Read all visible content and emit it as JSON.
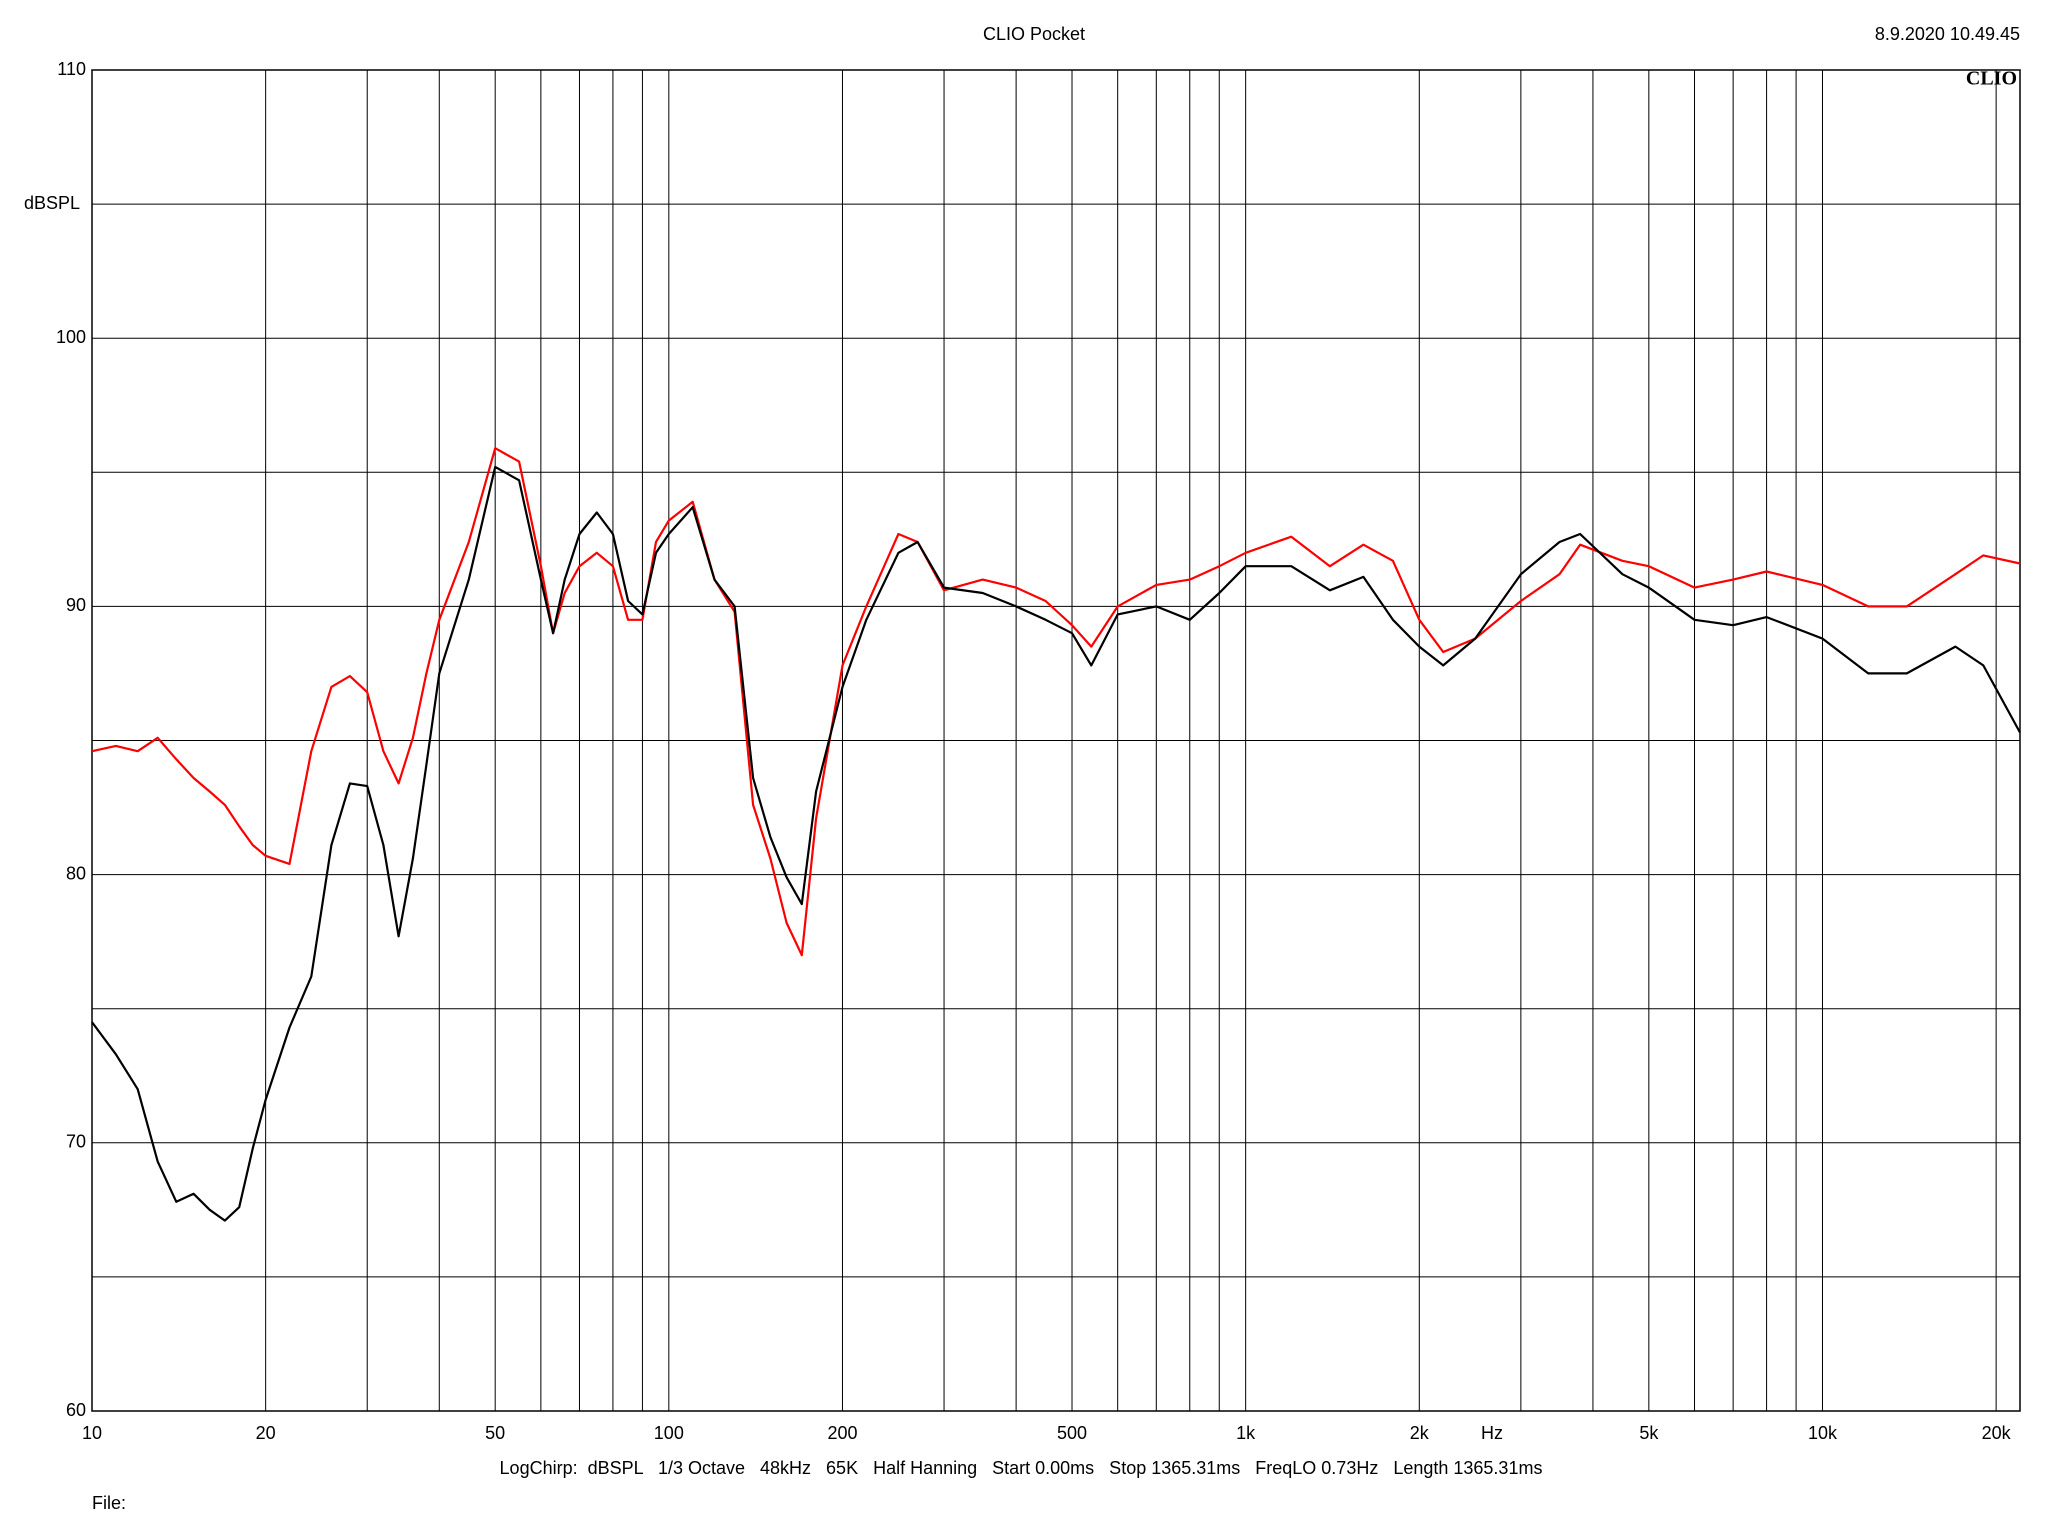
{
  "chart_data": {
    "type": "line",
    "title": "CLIO Pocket",
    "timestamp": "8.9.2020 10.49.45",
    "logo": "CLIO",
    "y_label": "dBSPL",
    "x_label": "Hz",
    "footer": "LogChirp:  dBSPL   1/3 Octave   48kHz   65K   Half Hanning   Start 0.00ms   Stop 1365.31ms   FreqLO 0.73Hz   Length 1365.31ms",
    "file_label": "File:",
    "x_log": true,
    "grid": true,
    "x": [
      10,
      11,
      12,
      13,
      14,
      15,
      16,
      17,
      18,
      19,
      20,
      22,
      24,
      26,
      28,
      30,
      32,
      34,
      36,
      38,
      40,
      45,
      50,
      55,
      60,
      63,
      66,
      70,
      75,
      80,
      85,
      90,
      95,
      100,
      110,
      120,
      130,
      140,
      150,
      160,
      170,
      180,
      200,
      220,
      250,
      270,
      300,
      350,
      400,
      450,
      500,
      540,
      600,
      700,
      800,
      900,
      1000,
      1200,
      1400,
      1600,
      1800,
      2000,
      2200,
      2500,
      3000,
      3500,
      3800,
      4500,
      5000,
      6000,
      7000,
      8000,
      10000,
      12000,
      14000,
      17000,
      19000,
      22000
    ],
    "series": [
      {
        "color": "#000000",
        "values": [
          74.5,
          73.3,
          72.0,
          69.3,
          67.8,
          68.1,
          67.5,
          67.1,
          67.6,
          69.8,
          71.6,
          74.3,
          76.2,
          81.1,
          83.4,
          83.3,
          81.1,
          77.7,
          80.6,
          84.1,
          87.5,
          91.0,
          95.2,
          94.7,
          91.0,
          89.0,
          91.0,
          92.7,
          93.5,
          92.7,
          90.2,
          89.7,
          92.0,
          92.7,
          93.7,
          91.0,
          90.0,
          83.6,
          81.4,
          79.9,
          78.9,
          83.1,
          87.0,
          89.5,
          92.0,
          92.4,
          90.7,
          90.5,
          90.0,
          89.5,
          89.0,
          87.8,
          89.7,
          90.0,
          89.5,
          90.5,
          91.5,
          91.5,
          90.6,
          91.1,
          89.5,
          88.5,
          87.8,
          88.8,
          91.2,
          92.4,
          92.7,
          91.2,
          90.7,
          89.5,
          89.3,
          89.6,
          88.8,
          87.5,
          87.5,
          88.5,
          87.8,
          85.3
        ]
      },
      {
        "color": "#ff0000",
        "values": [
          84.6,
          84.8,
          84.6,
          85.1,
          84.3,
          83.6,
          83.1,
          82.6,
          81.8,
          81.1,
          80.7,
          80.4,
          84.6,
          87.0,
          87.4,
          86.8,
          84.6,
          83.4,
          85.1,
          87.5,
          89.5,
          92.4,
          95.9,
          95.4,
          91.5,
          89.0,
          90.5,
          91.5,
          92.0,
          91.5,
          89.5,
          89.5,
          92.4,
          93.2,
          93.9,
          91.0,
          89.8,
          82.6,
          80.6,
          78.2,
          77.0,
          82.1,
          87.8,
          90.0,
          92.7,
          92.4,
          90.6,
          91.0,
          90.7,
          90.2,
          89.3,
          88.5,
          90.0,
          90.8,
          91.0,
          91.5,
          92.0,
          92.6,
          91.5,
          92.3,
          91.7,
          89.5,
          88.3,
          88.8,
          90.2,
          91.2,
          92.3,
          91.7,
          91.5,
          90.7,
          91.0,
          91.3,
          90.8,
          90.0,
          90.0,
          91.2,
          91.9,
          91.6
        ]
      }
    ],
    "xlim": [
      10,
      22000
    ],
    "xticks": [
      10,
      20,
      50,
      100,
      200,
      500,
      {
        "value": 1000,
        "label": "1k"
      },
      {
        "value": 2000,
        "label": "2k"
      },
      {
        "value": 5000,
        "label": "5k"
      },
      {
        "value": 10000,
        "label": "10k"
      },
      {
        "value": 20000,
        "label": "20k"
      }
    ],
    "xminor": [
      30,
      40,
      60,
      70,
      80,
      90,
      300,
      400,
      600,
      700,
      800,
      900,
      3000,
      4000,
      6000,
      7000,
      8000,
      9000
    ],
    "ylim": [
      60,
      110
    ],
    "yticks": [
      60,
      70,
      80,
      90,
      100,
      110
    ],
    "yminor": [
      65,
      75,
      85,
      95,
      105
    ]
  }
}
